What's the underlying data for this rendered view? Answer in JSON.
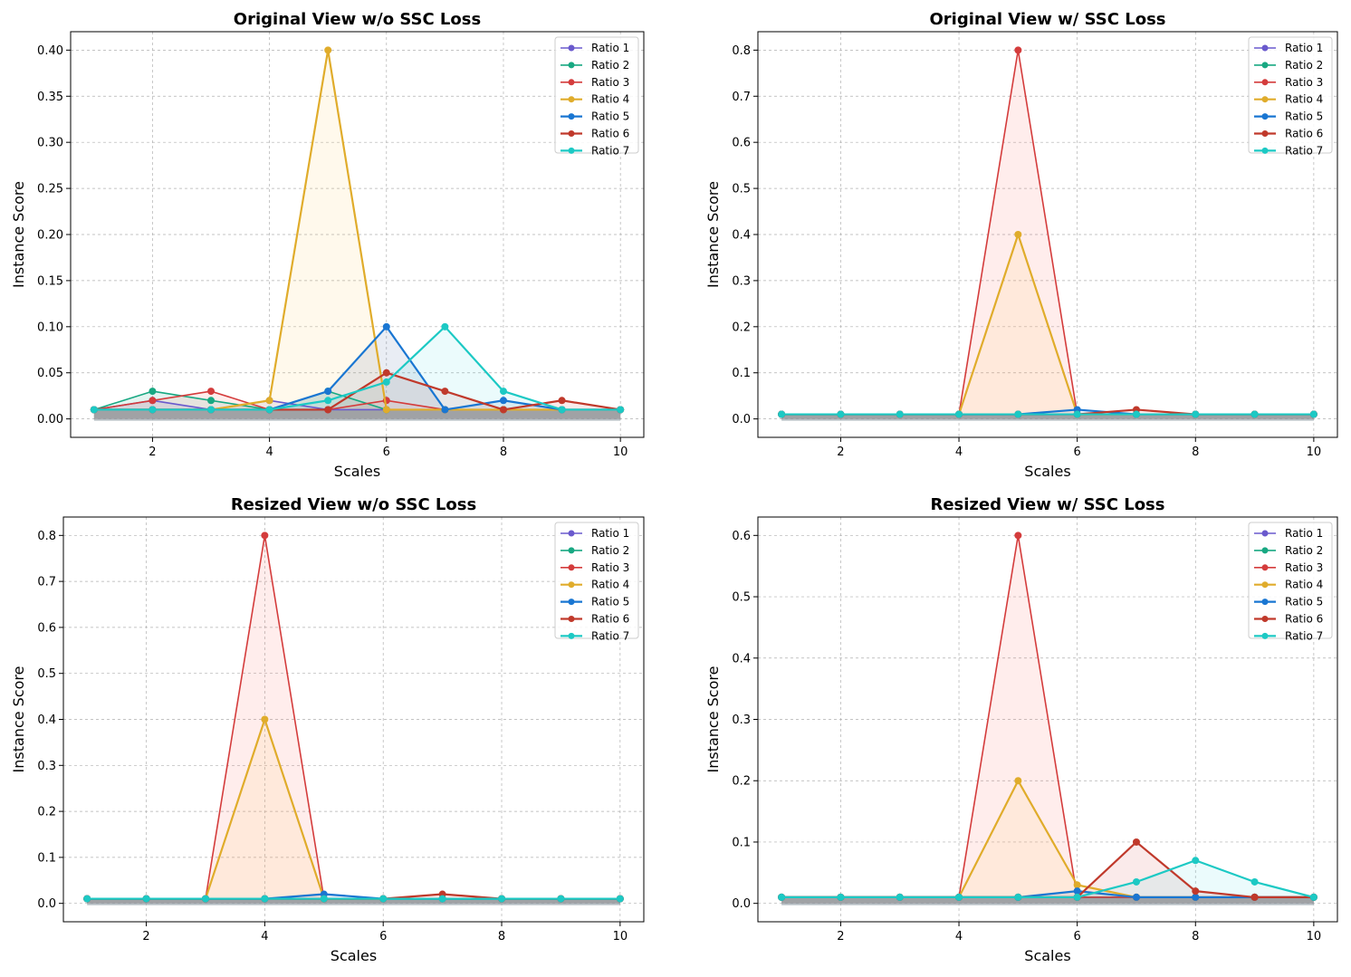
{
  "chart_data": [
    {
      "type": "line",
      "title": "Original View w/o SSC Loss",
      "xlabel": "Scales",
      "ylabel": "Instance Score",
      "xlim": [
        0.6,
        10.4
      ],
      "ylim": [
        -0.02,
        0.42
      ],
      "xticks": [
        2,
        4,
        6,
        8,
        10
      ],
      "xtick_labels": [
        "2",
        "4",
        "6",
        "8",
        "10"
      ],
      "yticks": [
        0,
        0.05,
        0.1,
        0.15,
        0.2,
        0.25,
        0.3,
        0.35,
        0.4
      ],
      "ytick_labels": [
        "0.00",
        "0.05",
        "0.10",
        "0.15",
        "0.20",
        "0.25",
        "0.30",
        "0.35",
        "0.40"
      ],
      "grid": true,
      "legend": "top-right",
      "x": [
        1,
        2,
        3,
        4,
        5,
        6,
        7,
        8,
        9,
        10
      ],
      "series": [
        {
          "name": "Ratio 1",
          "values": [
            0.01,
            0.02,
            0.01,
            0.02,
            0.01,
            0.01,
            0.01,
            0.01,
            0.01,
            0.01
          ]
        },
        {
          "name": "Ratio 2",
          "values": [
            0.01,
            0.03,
            0.02,
            0.01,
            0.03,
            0.01,
            0.01,
            0.01,
            0.01,
            0.01
          ]
        },
        {
          "name": "Ratio 3",
          "values": [
            0.01,
            0.02,
            0.03,
            0.01,
            0.01,
            0.02,
            0.01,
            0.01,
            0.01,
            0.01
          ]
        },
        {
          "name": "Ratio 4",
          "values": [
            0.01,
            0.01,
            0.01,
            0.02,
            0.4,
            0.01,
            0.01,
            0.01,
            0.01,
            0.01
          ]
        },
        {
          "name": "Ratio 5",
          "values": [
            0.01,
            0.01,
            0.01,
            0.01,
            0.03,
            0.1,
            0.01,
            0.02,
            0.01,
            0.01
          ]
        },
        {
          "name": "Ratio 6",
          "values": [
            0.01,
            0.01,
            0.01,
            0.01,
            0.01,
            0.05,
            0.03,
            0.01,
            0.02,
            0.01
          ]
        },
        {
          "name": "Ratio 7",
          "values": [
            0.01,
            0.01,
            0.01,
            0.01,
            0.02,
            0.04,
            0.1,
            0.03,
            0.01,
            0.01
          ]
        }
      ]
    },
    {
      "type": "line",
      "title": "Original View w/ SSC Loss",
      "xlabel": "Scales",
      "ylabel": "Instance Score",
      "xlim": [
        0.6,
        10.4
      ],
      "ylim": [
        -0.04,
        0.84
      ],
      "xticks": [
        2,
        4,
        6,
        8,
        10
      ],
      "xtick_labels": [
        "2",
        "4",
        "6",
        "8",
        "10"
      ],
      "yticks": [
        0,
        0.1,
        0.2,
        0.3,
        0.4,
        0.5,
        0.6,
        0.7,
        0.8
      ],
      "ytick_labels": [
        "0.0",
        "0.1",
        "0.2",
        "0.3",
        "0.4",
        "0.5",
        "0.6",
        "0.7",
        "0.8"
      ],
      "grid": true,
      "legend": "top-right",
      "x": [
        1,
        2,
        3,
        4,
        5,
        6,
        7,
        8,
        9,
        10
      ],
      "series": [
        {
          "name": "Ratio 1",
          "values": [
            0.01,
            0.01,
            0.01,
            0.01,
            0.01,
            0.01,
            0.01,
            0.01,
            0.01,
            0.01
          ]
        },
        {
          "name": "Ratio 2",
          "values": [
            0.01,
            0.01,
            0.01,
            0.01,
            0.01,
            0.01,
            0.01,
            0.01,
            0.01,
            0.01
          ]
        },
        {
          "name": "Ratio 3",
          "values": [
            0.01,
            0.01,
            0.01,
            0.01,
            0.8,
            0.01,
            0.01,
            0.01,
            0.01,
            0.01
          ]
        },
        {
          "name": "Ratio 4",
          "values": [
            0.01,
            0.01,
            0.01,
            0.01,
            0.4,
            0.01,
            0.01,
            0.01,
            0.01,
            0.01
          ]
        },
        {
          "name": "Ratio 5",
          "values": [
            0.01,
            0.01,
            0.01,
            0.01,
            0.01,
            0.02,
            0.01,
            0.01,
            0.01,
            0.01
          ]
        },
        {
          "name": "Ratio 6",
          "values": [
            0.01,
            0.01,
            0.01,
            0.01,
            0.01,
            0.01,
            0.02,
            0.01,
            0.01,
            0.01
          ]
        },
        {
          "name": "Ratio 7",
          "values": [
            0.01,
            0.01,
            0.01,
            0.01,
            0.01,
            0.01,
            0.01,
            0.01,
            0.01,
            0.01
          ]
        }
      ]
    },
    {
      "type": "line",
      "title": "Resized View w/o SSC Loss",
      "xlabel": "Scales",
      "ylabel": "Instance Score",
      "xlim": [
        0.6,
        10.4
      ],
      "ylim": [
        -0.04,
        0.84
      ],
      "xticks": [
        2,
        4,
        6,
        8,
        10
      ],
      "xtick_labels": [
        "2",
        "4",
        "6",
        "8",
        "10"
      ],
      "yticks": [
        0,
        0.1,
        0.2,
        0.3,
        0.4,
        0.5,
        0.6,
        0.7,
        0.8
      ],
      "ytick_labels": [
        "0.0",
        "0.1",
        "0.2",
        "0.3",
        "0.4",
        "0.5",
        "0.6",
        "0.7",
        "0.8"
      ],
      "grid": true,
      "legend": "top-right",
      "x": [
        1,
        2,
        3,
        4,
        5,
        6,
        7,
        8,
        9,
        10
      ],
      "series": [
        {
          "name": "Ratio 1",
          "values": [
            0.01,
            0.01,
            0.01,
            0.01,
            0.01,
            0.01,
            0.01,
            0.01,
            0.01,
            0.01
          ]
        },
        {
          "name": "Ratio 2",
          "values": [
            0.01,
            0.01,
            0.01,
            0.01,
            0.01,
            0.01,
            0.01,
            0.01,
            0.01,
            0.01
          ]
        },
        {
          "name": "Ratio 3",
          "values": [
            0.01,
            0.01,
            0.01,
            0.8,
            0.01,
            0.01,
            0.01,
            0.01,
            0.01,
            0.01
          ]
        },
        {
          "name": "Ratio 4",
          "values": [
            0.01,
            0.01,
            0.01,
            0.4,
            0.01,
            0.01,
            0.01,
            0.01,
            0.01,
            0.01
          ]
        },
        {
          "name": "Ratio 5",
          "values": [
            0.01,
            0.01,
            0.01,
            0.01,
            0.02,
            0.01,
            0.01,
            0.01,
            0.01,
            0.01
          ]
        },
        {
          "name": "Ratio 6",
          "values": [
            0.01,
            0.01,
            0.01,
            0.01,
            0.01,
            0.01,
            0.02,
            0.01,
            0.01,
            0.01
          ]
        },
        {
          "name": "Ratio 7",
          "values": [
            0.01,
            0.01,
            0.01,
            0.01,
            0.01,
            0.01,
            0.01,
            0.01,
            0.01,
            0.01
          ]
        }
      ]
    },
    {
      "type": "line",
      "title": "Resized View w/ SSC Loss",
      "xlabel": "Scales",
      "ylabel": "Instance Score",
      "xlim": [
        0.6,
        10.4
      ],
      "ylim": [
        -0.03,
        0.63
      ],
      "xticks": [
        2,
        4,
        6,
        8,
        10
      ],
      "xtick_labels": [
        "2",
        "4",
        "6",
        "8",
        "10"
      ],
      "yticks": [
        0,
        0.1,
        0.2,
        0.3,
        0.4,
        0.5,
        0.6
      ],
      "ytick_labels": [
        "0.0",
        "0.1",
        "0.2",
        "0.3",
        "0.4",
        "0.5",
        "0.6"
      ],
      "grid": true,
      "legend": "top-right",
      "x": [
        1,
        2,
        3,
        4,
        5,
        6,
        7,
        8,
        9,
        10
      ],
      "series": [
        {
          "name": "Ratio 1",
          "values": [
            0.01,
            0.01,
            0.01,
            0.01,
            0.01,
            0.01,
            0.01,
            0.01,
            0.01,
            0.01
          ]
        },
        {
          "name": "Ratio 2",
          "values": [
            0.01,
            0.01,
            0.01,
            0.01,
            0.01,
            0.01,
            0.01,
            0.01,
            0.01,
            0.01
          ]
        },
        {
          "name": "Ratio 3",
          "values": [
            0.01,
            0.01,
            0.01,
            0.01,
            0.6,
            0.01,
            0.01,
            0.01,
            0.01,
            0.01
          ]
        },
        {
          "name": "Ratio 4",
          "values": [
            0.01,
            0.01,
            0.01,
            0.01,
            0.2,
            0.03,
            0.01,
            0.01,
            0.01,
            0.01
          ]
        },
        {
          "name": "Ratio 5",
          "values": [
            0.01,
            0.01,
            0.01,
            0.01,
            0.01,
            0.02,
            0.01,
            0.01,
            0.01,
            0.01
          ]
        },
        {
          "name": "Ratio 6",
          "values": [
            0.01,
            0.01,
            0.01,
            0.01,
            0.01,
            0.01,
            0.1,
            0.02,
            0.01,
            0.01
          ]
        },
        {
          "name": "Ratio 7",
          "values": [
            0.01,
            0.01,
            0.01,
            0.01,
            0.01,
            0.01,
            0.035,
            0.07,
            0.035,
            0.01
          ]
        }
      ]
    }
  ],
  "series_colors": [
    "#6a5acd",
    "#18a882",
    "#d43c3c",
    "#e0ac2b",
    "#1976d2",
    "#c0392b",
    "#1cc9c4"
  ],
  "series_line_widths": [
    1.6,
    1.6,
    1.6,
    2.2,
    2.2,
    2.2,
    2.2
  ],
  "fill_colors": [
    "#6a5acd",
    "#18a882",
    "#ff6f61",
    "#ffd166",
    "#4a6fa5",
    "#d9534f",
    "#5ce1e6"
  ]
}
